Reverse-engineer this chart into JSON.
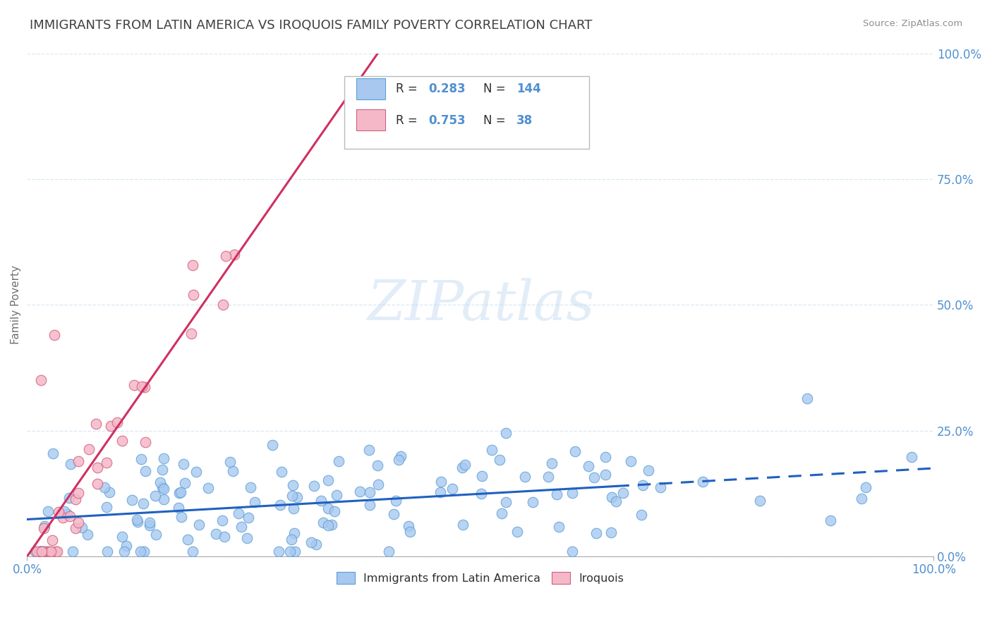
{
  "title": "IMMIGRANTS FROM LATIN AMERICA VS IROQUOIS FAMILY POVERTY CORRELATION CHART",
  "source": "Source: ZipAtlas.com",
  "ylabel": "Family Poverty",
  "legend_labels": [
    "Immigrants from Latin America",
    "Iroquois"
  ],
  "series1": {
    "name": "Immigrants from Latin America",
    "R": 0.283,
    "N": 144,
    "marker_color": "#a8c8f0",
    "marker_edge": "#5a9fd4",
    "line_color": "#2060c0",
    "line_style": "--"
  },
  "series2": {
    "name": "Iroquois",
    "R": 0.753,
    "N": 38,
    "marker_color": "#f5b8c8",
    "marker_edge": "#d06080",
    "line_color": "#d03060",
    "line_style": "-"
  },
  "watermark": "ZIPatlas",
  "title_color": "#404040",
  "title_fontsize": 13,
  "axis_label_color": "#5090d0",
  "grid_color": "#d8e8f4",
  "background_color": "#ffffff",
  "xlim": [
    0,
    1.0
  ],
  "ylim": [
    0,
    1.0
  ],
  "y_ticks": [
    0,
    0.25,
    0.5,
    0.75,
    1.0
  ],
  "y_tick_labels": [
    "0.0%",
    "25.0%",
    "50.0%",
    "75.0%",
    "100.0%"
  ]
}
